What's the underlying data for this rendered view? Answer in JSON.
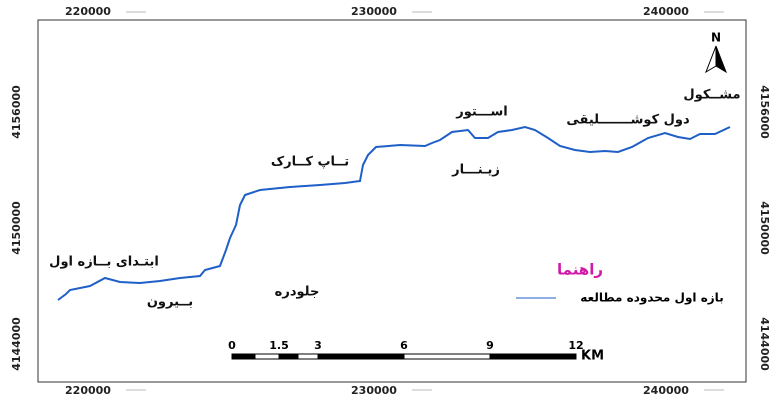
{
  "map": {
    "coordinates": {
      "top": [
        "220000",
        "230000",
        "240000"
      ],
      "bottom": [
        "220000",
        "230000",
        "240000"
      ],
      "left": [
        "4156000",
        "4150000",
        "4144000"
      ],
      "right": [
        "4156000",
        "4150000",
        "4144000"
      ]
    },
    "places": [
      "ابتـدای بــازه اول",
      "بــیرون",
      "جلودره",
      "تــاپ کــارک",
      "زیـنـــار",
      "اســـتور",
      "دول کوشـــــــلیقی",
      "مشــکول"
    ],
    "north": "N",
    "legend": {
      "title": "راهنما",
      "item": "بازه اول محدوده مطالعه"
    },
    "scale_bar": {
      "labels": [
        "0",
        "1.5",
        "3",
        "6",
        "9",
        "12"
      ],
      "unit": "KM"
    }
  }
}
